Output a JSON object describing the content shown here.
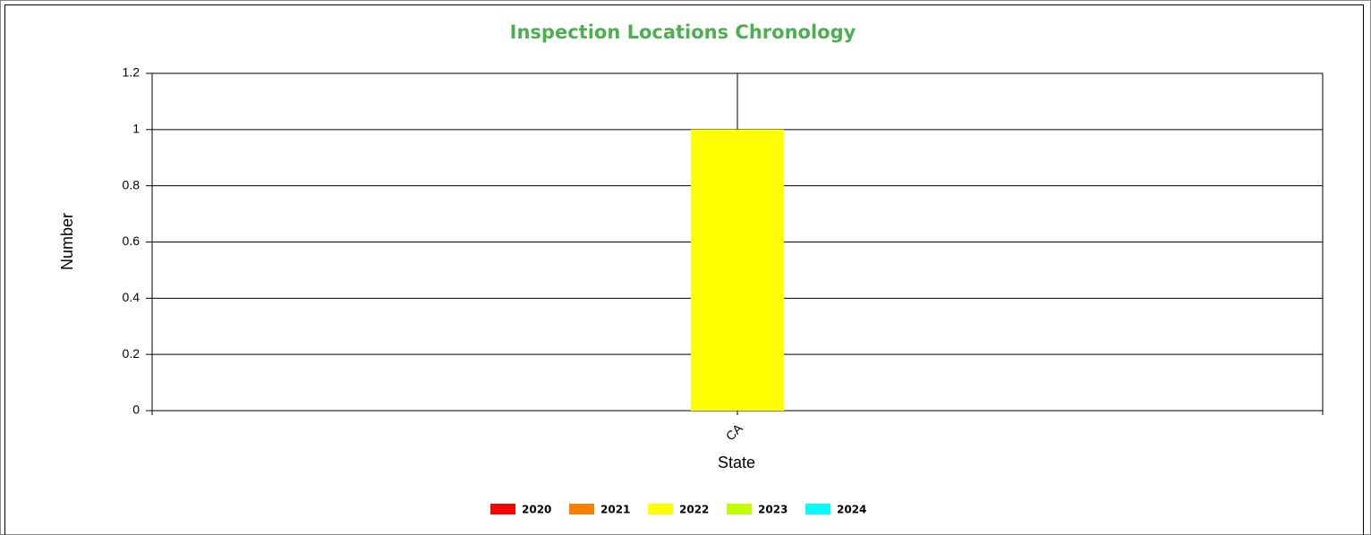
{
  "chart_data": {
    "type": "bar",
    "title": "Inspection Locations Chronology",
    "x_label": "State",
    "y_label": "Number",
    "categories": [
      "CA"
    ],
    "series": [
      {
        "name": "2020",
        "color": "#ff0000",
        "values": [
          0
        ]
      },
      {
        "name": "2021",
        "color": "#ff8000",
        "values": [
          0
        ]
      },
      {
        "name": "2022",
        "color": "#ffff00",
        "values": [
          1
        ]
      },
      {
        "name": "2023",
        "color": "#bfff00",
        "values": [
          0
        ]
      },
      {
        "name": "2024",
        "color": "#00ffff",
        "values": [
          0
        ]
      }
    ],
    "ylim": [
      0,
      1.2
    ],
    "yticks": [
      0,
      0.2,
      0.4,
      0.6,
      0.8,
      1,
      1.2
    ],
    "grid": true,
    "legend": "bottom"
  }
}
